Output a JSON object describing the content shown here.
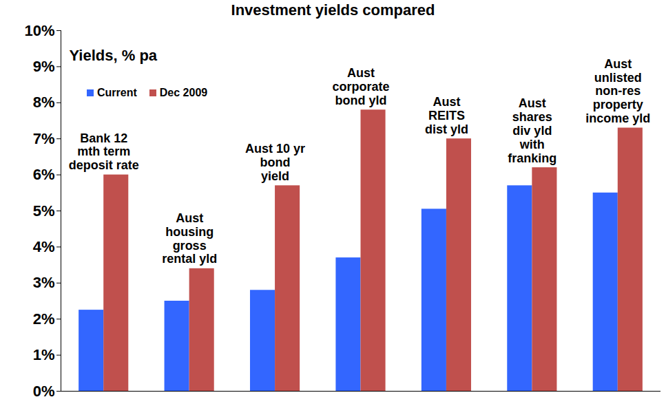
{
  "chart_data": {
    "type": "bar",
    "title": "Investment yields compared",
    "ylabel": "Yields, % pa",
    "categories": [
      "Bank 12\nmth term\ndeposit rate",
      "Aust\nhousing\ngross\nrental yld",
      "Aust 10 yr\nbond\nyield",
      "Aust\ncorporate\nbond yld",
      "Aust\nREITS\ndist yld",
      "Aust\nshares\ndiv yld\nwith\nfranking",
      "Aust\nunlisted\nnon-res\nproperty\nincome yld"
    ],
    "series": [
      {
        "name": "Current",
        "color": "#3366ff",
        "values": [
          2.25,
          2.5,
          2.8,
          3.7,
          5.05,
          5.7,
          5.5
        ]
      },
      {
        "name": "Dec 2009",
        "color": "#c0504d",
        "values": [
          6.0,
          3.4,
          5.7,
          7.8,
          7.0,
          6.2,
          7.3
        ]
      }
    ],
    "ylim": [
      0,
      10
    ],
    "yticks": [
      {
        "value": 0,
        "label": "0%"
      },
      {
        "value": 1,
        "label": "1%"
      },
      {
        "value": 2,
        "label": "2%"
      },
      {
        "value": 3,
        "label": "3%"
      },
      {
        "value": 4,
        "label": "4%"
      },
      {
        "value": 5,
        "label": "5%"
      },
      {
        "value": 6,
        "label": "6%"
      },
      {
        "value": 7,
        "label": "7%"
      },
      {
        "value": 8,
        "label": "8%"
      },
      {
        "value": 9,
        "label": "9%"
      },
      {
        "value": 10,
        "label": "10%"
      }
    ],
    "legend": "top-left",
    "tick_labels": "y"
  }
}
